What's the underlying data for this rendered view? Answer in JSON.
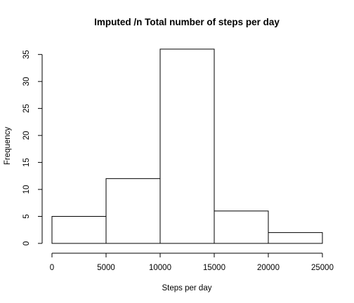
{
  "chart_data": {
    "type": "bar",
    "title": "Imputed /n Total number of steps per day",
    "xlabel": "Steps per day",
    "ylabel": "Frequency",
    "bins": [
      {
        "start": 0,
        "end": 5000,
        "count": 5
      },
      {
        "start": 5000,
        "end": 10000,
        "count": 12
      },
      {
        "start": 10000,
        "end": 15000,
        "count": 36
      },
      {
        "start": 15000,
        "end": 20000,
        "count": 6
      },
      {
        "start": 20000,
        "end": 25000,
        "count": 2
      }
    ],
    "x_ticks": [
      0,
      5000,
      10000,
      15000,
      20000,
      25000
    ],
    "y_ticks": [
      0,
      5,
      10,
      15,
      20,
      25,
      30,
      35
    ],
    "xlim": [
      0,
      25000
    ],
    "ylim": [
      0,
      36
    ],
    "grid": false,
    "legend": "none"
  }
}
